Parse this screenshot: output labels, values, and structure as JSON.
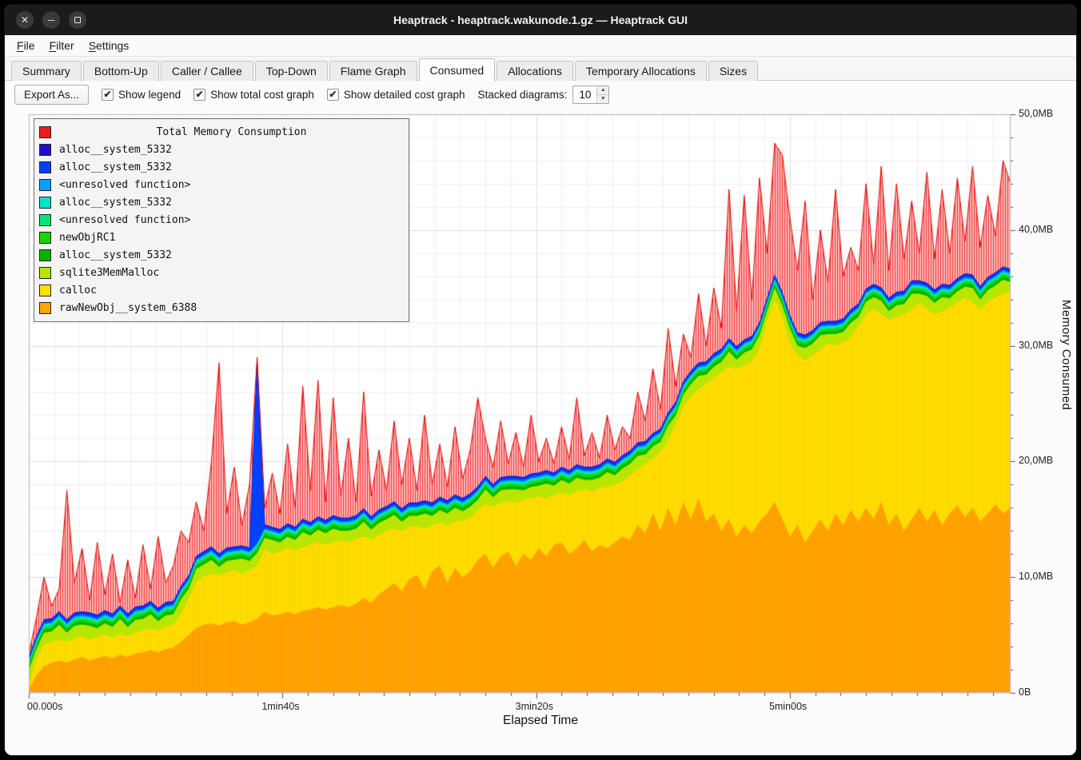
{
  "window": {
    "title": "Heaptrack - heaptrack.wakunode.1.gz — Heaptrack GUI"
  },
  "titlebar_buttons": {
    "close": "✕",
    "minimize": "─",
    "maximize": "▢"
  },
  "menubar": {
    "items": [
      {
        "label": "File"
      },
      {
        "label": "Filter"
      },
      {
        "label": "Settings"
      }
    ]
  },
  "tabs": [
    {
      "label": "Summary",
      "active": false
    },
    {
      "label": "Bottom-Up",
      "active": false
    },
    {
      "label": "Caller / Callee",
      "active": false
    },
    {
      "label": "Top-Down",
      "active": false
    },
    {
      "label": "Flame Graph",
      "active": false
    },
    {
      "label": "Consumed",
      "active": true
    },
    {
      "label": "Allocations",
      "active": false
    },
    {
      "label": "Temporary Allocations",
      "active": false
    },
    {
      "label": "Sizes",
      "active": false
    }
  ],
  "toolbar": {
    "export_label": "Export As...",
    "checkboxes": [
      {
        "label": "Show legend",
        "checked": true
      },
      {
        "label": "Show total cost graph",
        "checked": true
      },
      {
        "label": "Show detailed cost graph",
        "checked": true
      }
    ],
    "check_glyph": "✔",
    "stacked_label": "Stacked diagrams:",
    "stacked_value": "10"
  },
  "legend": {
    "title": "Total Memory Consumption",
    "title_color": "#ee1c1c",
    "entries": [
      {
        "label": "alloc__system_5332",
        "color": "#1a10cc"
      },
      {
        "label": "alloc__system_5332",
        "color": "#0040ff"
      },
      {
        "label": "<unresolved function>",
        "color": "#00a2ff"
      },
      {
        "label": "alloc__system_5332",
        "color": "#00e4c8"
      },
      {
        "label": "<unresolved function>",
        "color": "#00e878"
      },
      {
        "label": "newObjRC1",
        "color": "#1ed300"
      },
      {
        "label": "alloc__system_5332",
        "color": "#00b400"
      },
      {
        "label": "sqlite3MemMalloc",
        "color": "#b8e600"
      },
      {
        "label": "calloc",
        "color": "#ffe000"
      },
      {
        "label": "rawNewObj__system_6388",
        "color": "#ffa600"
      }
    ]
  },
  "axes": {
    "x_label": "Elapsed Time",
    "y_label": "Memory Consumed",
    "y_ticks": [
      {
        "value": 0,
        "label": "0B"
      },
      {
        "value": 10,
        "label": "10,0MB"
      },
      {
        "value": 20,
        "label": "20,0MB"
      },
      {
        "value": 30,
        "label": "30,0MB"
      },
      {
        "value": 40,
        "label": "40,0MB"
      },
      {
        "value": 50,
        "label": "50,0MB"
      }
    ],
    "x_ticks": [
      {
        "t_s": 0,
        "label": "00.000s"
      },
      {
        "t_s": 100,
        "label": "1min40s"
      },
      {
        "t_s": 200,
        "label": "3min20s"
      },
      {
        "t_s": 300,
        "label": "5min00s"
      }
    ]
  },
  "chart_data": {
    "type": "area",
    "stacked": true,
    "title": "Total Memory Consumption",
    "unit": "MB",
    "ylim": [
      0,
      50
    ],
    "t_step_s": 3,
    "total_color": "#e00000",
    "series_bottom_to_top": [
      "rawNewObj__system_6388",
      "calloc",
      "sqlite3MemMalloc",
      "alloc__system_5332",
      "newObjRC1",
      "<unresolved function>",
      "alloc__system_5332",
      "<unresolved function>",
      "alloc__system_5332",
      "alloc__system_5332"
    ],
    "thin_layer_thickness_mb": {
      "alloc_green": 0.25,
      "newObjRC1": 0.2,
      "unresolved_spring": 0.12,
      "alloc_turquoise": 0.12,
      "unresolved_lightblue": 0.12,
      "alloc_blue": 0.22,
      "alloc_navy": 0.12
    },
    "greenyellow_thickness_pattern": [
      1.2,
      0.8,
      1.0,
      0.9,
      1.3,
      0.8,
      1.1,
      1.0
    ],
    "blue_spike": {
      "t_s": 90,
      "value_mb": 28.5
    },
    "rawNewObj_top_mb": [
      0.3,
      1.5,
      2.3,
      2.6,
      2.8,
      2.6,
      2.9,
      3.1,
      2.8,
      3.0,
      3.2,
      3.0,
      3.3,
      3.1,
      3.4,
      3.5,
      3.7,
      3.5,
      3.8,
      3.9,
      4.4,
      5.0,
      5.6,
      5.9,
      6.0,
      5.8,
      6.1,
      6.2,
      5.9,
      6.1,
      6.4,
      7.0,
      6.7,
      6.8,
      7.0,
      6.8,
      7.1,
      7.2,
      7.4,
      7.2,
      7.4,
      7.6,
      7.4,
      7.7,
      8.2,
      7.8,
      8.5,
      9.0,
      9.5,
      8.8,
      9.8,
      10.2,
      9.0,
      10.5,
      11.0,
      9.5,
      10.8,
      10.0,
      10.5,
      11.5,
      12.0,
      10.8,
      11.8,
      12.2,
      11.0,
      12.0,
      11.5,
      12.5,
      11.8,
      12.8,
      13.0,
      12.0,
      12.5,
      13.2,
      12.2,
      12.8,
      12.5,
      13.0,
      13.5,
      13.2,
      14.5,
      13.8,
      15.5,
      14.0,
      16.0,
      14.5,
      16.5,
      15.0,
      16.8,
      14.8,
      15.5,
      14.0,
      15.0,
      13.5,
      14.5,
      13.8,
      14.8,
      15.5,
      16.5,
      15.0,
      13.5,
      14.5,
      13.0,
      14.0,
      15.0,
      14.0,
      15.5,
      14.5,
      15.8,
      14.8,
      16.0,
      15.0,
      16.5,
      14.5,
      15.5,
      14.0,
      15.0,
      16.0,
      14.8,
      15.8,
      14.5,
      15.5,
      16.2,
      15.2,
      16.0,
      14.8,
      15.5,
      16.3,
      15.5,
      16.0
    ],
    "calloc_top_mb": [
      0.8,
      3.0,
      4.2,
      4.4,
      4.6,
      4.4,
      4.7,
      4.9,
      4.6,
      4.8,
      5.0,
      4.8,
      5.1,
      4.9,
      5.2,
      5.4,
      5.6,
      5.4,
      5.7,
      5.9,
      6.8,
      8.2,
      9.6,
      10.1,
      10.3,
      10.1,
      10.4,
      10.6,
      10.3,
      10.6,
      11.0,
      12.4,
      12.0,
      12.2,
      12.5,
      12.3,
      12.6,
      12.8,
      13.0,
      12.8,
      13.0,
      13.2,
      13.0,
      13.3,
      13.5,
      13.3,
      13.6,
      14.0,
      14.2,
      14.0,
      14.3,
      14.4,
      14.2,
      14.5,
      14.7,
      14.5,
      14.8,
      14.9,
      15.1,
      15.8,
      16.3,
      16.1,
      16.4,
      16.6,
      16.4,
      16.7,
      16.8,
      17.0,
      16.8,
      17.1,
      17.3,
      17.1,
      17.4,
      17.6,
      17.4,
      17.7,
      17.8,
      18.0,
      18.3,
      18.8,
      19.3,
      19.8,
      20.3,
      20.8,
      21.8,
      23.2,
      24.7,
      25.7,
      26.2,
      26.7,
      27.2,
      27.7,
      28.2,
      28.0,
      28.3,
      28.7,
      29.7,
      32.2,
      34.0,
      32.6,
      30.2,
      29.2,
      28.7,
      29.2,
      29.7,
      30.2,
      30.0,
      30.3,
      30.7,
      31.7,
      32.7,
      33.2,
      32.7,
      32.2,
      32.5,
      32.7,
      33.2,
      33.7,
      33.2,
      32.7,
      33.0,
      33.3,
      33.7,
      34.2,
      33.7,
      33.2,
      33.7,
      34.2,
      34.5,
      34.7
    ],
    "total_mb": [
      1.5,
      6.5,
      10.0,
      7.5,
      9.0,
      17.5,
      9.5,
      12.5,
      8.0,
      13.0,
      8.5,
      12.0,
      7.8,
      11.5,
      8.2,
      12.8,
      9.0,
      13.5,
      9.5,
      11.0,
      14.0,
      13.0,
      16.5,
      14.0,
      20.0,
      28.5,
      15.5,
      19.5,
      14.5,
      18.0,
      29.0,
      16.0,
      19.0,
      15.5,
      21.5,
      16.0,
      26.5,
      17.5,
      27.0,
      16.5,
      25.5,
      17.0,
      22.0,
      16.5,
      26.0,
      17.0,
      21.0,
      17.5,
      23.5,
      18.0,
      22.0,
      17.5,
      24.0,
      18.0,
      21.5,
      17.8,
      23.0,
      18.5,
      21.0,
      25.5,
      22.0,
      19.5,
      23.5,
      19.8,
      22.5,
      19.5,
      24.0,
      20.0,
      22.0,
      19.8,
      23.0,
      20.2,
      25.5,
      20.5,
      22.5,
      20.3,
      24.0,
      21.0,
      23.0,
      22.0,
      26.0,
      23.5,
      28.0,
      24.5,
      31.5,
      26.5,
      31.0,
      29.0,
      34.5,
      30.0,
      35.0,
      31.5,
      43.5,
      33.0,
      43.0,
      34.0,
      44.5,
      38.0,
      47.5,
      46.5,
      41.0,
      36.5,
      42.5,
      34.0,
      40.0,
      35.5,
      43.5,
      36.0,
      38.5,
      36.5,
      44.0,
      37.0,
      45.5,
      36.5,
      44.0,
      37.5,
      42.5,
      38.0,
      45.0,
      37.5,
      43.5,
      38.0,
      44.5,
      39.0,
      45.5,
      38.5,
      43.0,
      39.5,
      46.0,
      44.0
    ]
  }
}
